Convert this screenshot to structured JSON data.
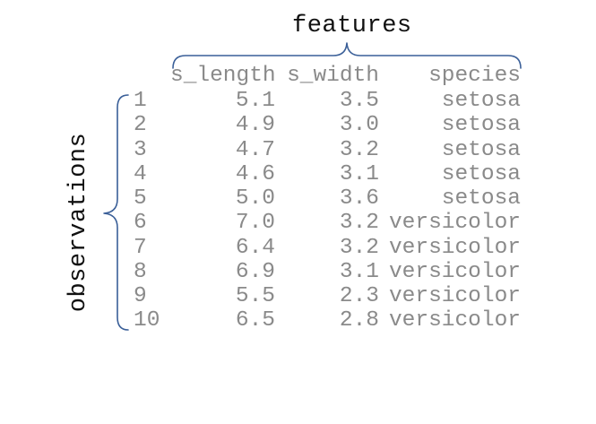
{
  "labels": {
    "features": "features",
    "observations": "observations"
  },
  "columns": [
    "s_length",
    "s_width",
    "species"
  ],
  "rows": [
    {
      "index": "1",
      "s_length": "5.1",
      "s_width": "3.5",
      "species": "setosa"
    },
    {
      "index": "2",
      "s_length": "4.9",
      "s_width": "3.0",
      "species": "setosa"
    },
    {
      "index": "3",
      "s_length": "4.7",
      "s_width": "3.2",
      "species": "setosa"
    },
    {
      "index": "4",
      "s_length": "4.6",
      "s_width": "3.1",
      "species": "setosa"
    },
    {
      "index": "5",
      "s_length": "5.0",
      "s_width": "3.6",
      "species": "setosa"
    },
    {
      "index": "6",
      "s_length": "7.0",
      "s_width": "3.2",
      "species": "versicolor"
    },
    {
      "index": "7",
      "s_length": "6.4",
      "s_width": "3.2",
      "species": "versicolor"
    },
    {
      "index": "8",
      "s_length": "6.9",
      "s_width": "3.1",
      "species": "versicolor"
    },
    {
      "index": "9",
      "s_length": "5.5",
      "s_width": "2.3",
      "species": "versicolor"
    },
    {
      "index": "10",
      "s_length": "6.5",
      "s_width": "2.8",
      "species": "versicolor"
    }
  ],
  "colors": {
    "brace": "#3a5f98",
    "label_text": "#111111",
    "table_text": "#8a8a8a"
  }
}
